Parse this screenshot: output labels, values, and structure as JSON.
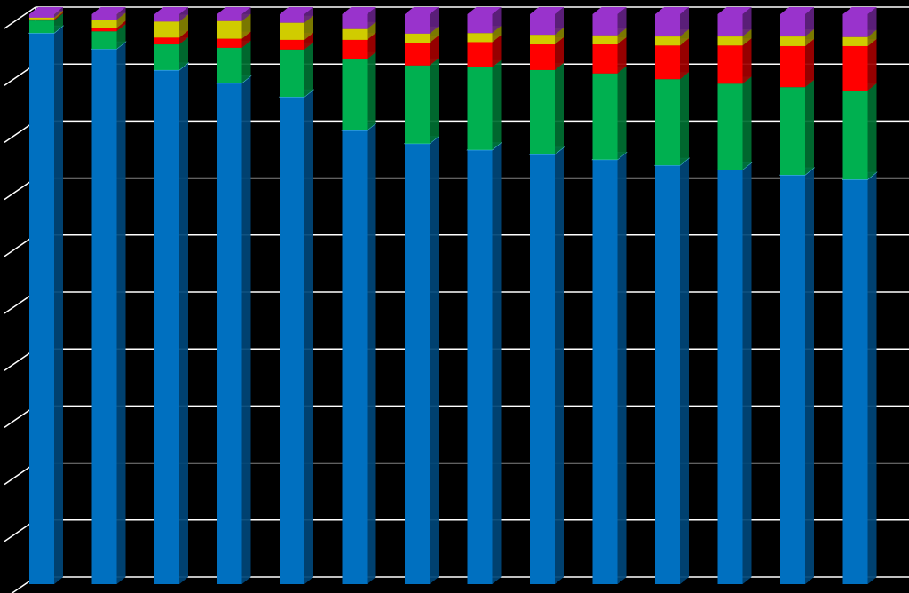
{
  "chart_data": {
    "type": "stacked-bar-3d",
    "categories": [
      null,
      null,
      null,
      null,
      null,
      null,
      null,
      null,
      null,
      null,
      null,
      null,
      null,
      null
    ],
    "series": [
      {
        "color": "#0070c0",
        "values": [
          96.7,
          93.9,
          90.2,
          87.9,
          85.5,
          79.6,
          77.3,
          76.2,
          75.4,
          74.5,
          73.5,
          72.7,
          71.8,
          71.0
        ]
      },
      {
        "color": "#00b050",
        "values": [
          2.2,
          3.1,
          4.5,
          6.2,
          8.3,
          12.5,
          13.7,
          14.5,
          14.8,
          15.1,
          15.1,
          15.1,
          15.4,
          15.6
        ]
      },
      {
        "color": "#ff0000",
        "values": [
          0.2,
          0.6,
          1.2,
          1.6,
          1.7,
          3.4,
          4.0,
          4.4,
          4.5,
          5.1,
          5.9,
          6.7,
          7.2,
          7.8
        ]
      },
      {
        "color": "#d0cc00",
        "values": [
          0.3,
          1.4,
          2.8,
          3.1,
          3.0,
          1.9,
          1.6,
          1.6,
          1.7,
          1.6,
          1.6,
          1.6,
          1.7,
          1.6
        ]
      },
      {
        "color": "#9933cc",
        "values": [
          0.6,
          1.0,
          1.3,
          1.2,
          1.5,
          2.6,
          3.4,
          3.3,
          3.6,
          3.7,
          3.9,
          3.9,
          3.9,
          4.0
        ]
      }
    ],
    "ylim": [
      0,
      100
    ],
    "yticks": [
      0,
      10,
      20,
      30,
      40,
      50,
      60,
      70,
      80,
      90,
      100
    ],
    "grid": true
  }
}
